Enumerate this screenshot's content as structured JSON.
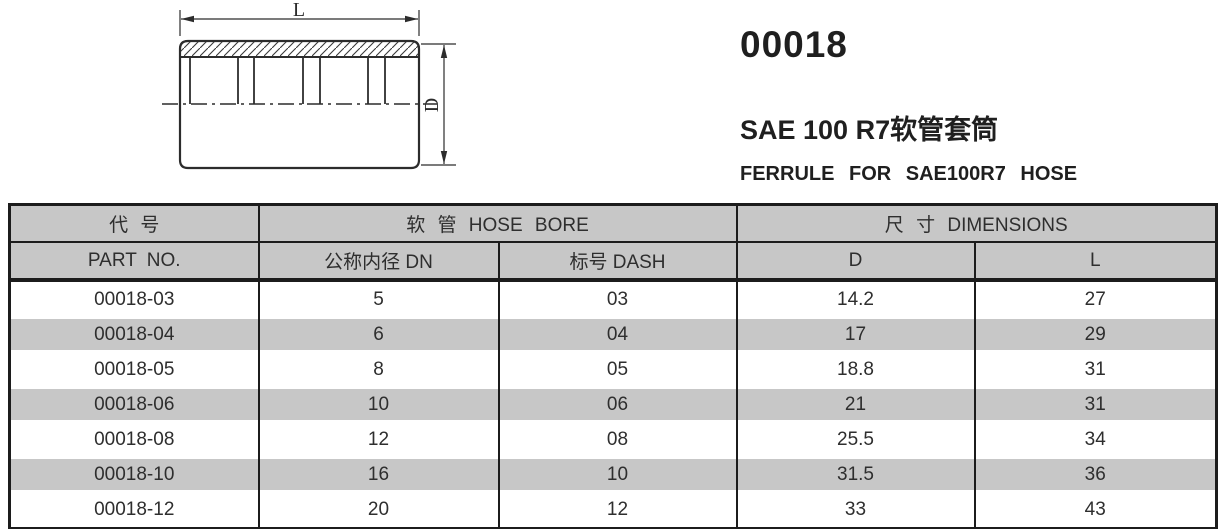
{
  "product": {
    "code": "00018",
    "name_zh": "SAE 100 R7软管套筒",
    "name_en": "FERRULE FOR SAE100R7 HOSE"
  },
  "drawing": {
    "length_label": "L",
    "diameter_label": "D"
  },
  "table": {
    "colors": {
      "header_bg": "#c7c7c7",
      "alt_row_bg": "#c7c7c7",
      "border": "#1c1c1c"
    },
    "header": {
      "part_no_zh": "代 号",
      "part_no_en": "PART NO.",
      "hose_bore_group": "软 管 HOSE BORE",
      "dimensions_group": "尺 寸 DIMENSIONS",
      "dn_label": "公称内径 DN",
      "dash_label": "标号 DASH",
      "d_label": "D",
      "l_label": "L"
    },
    "rows": [
      {
        "part_no": "00018-03",
        "dn": "5",
        "dash": "03",
        "d": "14.2",
        "l": "27"
      },
      {
        "part_no": "00018-04",
        "dn": "6",
        "dash": "04",
        "d": "17",
        "l": "29"
      },
      {
        "part_no": "00018-05",
        "dn": "8",
        "dash": "05",
        "d": "18.8",
        "l": "31"
      },
      {
        "part_no": "00018-06",
        "dn": "10",
        "dash": "06",
        "d": "21",
        "l": "31"
      },
      {
        "part_no": "00018-08",
        "dn": "12",
        "dash": "08",
        "d": "25.5",
        "l": "34"
      },
      {
        "part_no": "00018-10",
        "dn": "16",
        "dash": "10",
        "d": "31.5",
        "l": "36"
      },
      {
        "part_no": "00018-12",
        "dn": "20",
        "dash": "12",
        "d": "33",
        "l": "43"
      }
    ]
  }
}
